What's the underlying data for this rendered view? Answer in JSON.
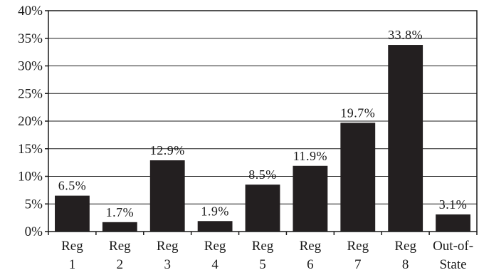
{
  "chart_data": {
    "type": "bar",
    "categories": [
      [
        "Reg",
        "1"
      ],
      [
        "Reg",
        "2"
      ],
      [
        "Reg",
        "3"
      ],
      [
        "Reg",
        "4"
      ],
      [
        "Reg",
        "5"
      ],
      [
        "Reg",
        "6"
      ],
      [
        "Reg",
        "7"
      ],
      [
        "Reg",
        "8"
      ],
      [
        "Out-of-",
        "State"
      ]
    ],
    "values": [
      6.5,
      1.7,
      12.9,
      1.9,
      8.5,
      11.9,
      19.7,
      33.8,
      3.1
    ],
    "data_labels": [
      "6.5%",
      "1.7%",
      "12.9%",
      "1.9%",
      "8.5%",
      "11.9%",
      "19.7%",
      "33.8%",
      "3.1%"
    ],
    "yticks": [
      0,
      5,
      10,
      15,
      20,
      25,
      30,
      35,
      40
    ],
    "ytick_labels": [
      "0%",
      "5%",
      "10%",
      "15%",
      "20%",
      "25%",
      "30%",
      "35%",
      "40%"
    ],
    "ylim": [
      0,
      40
    ],
    "grid": true,
    "legend": "none",
    "bar_color": "#231f20",
    "title": "",
    "xlabel": "",
    "ylabel": ""
  }
}
